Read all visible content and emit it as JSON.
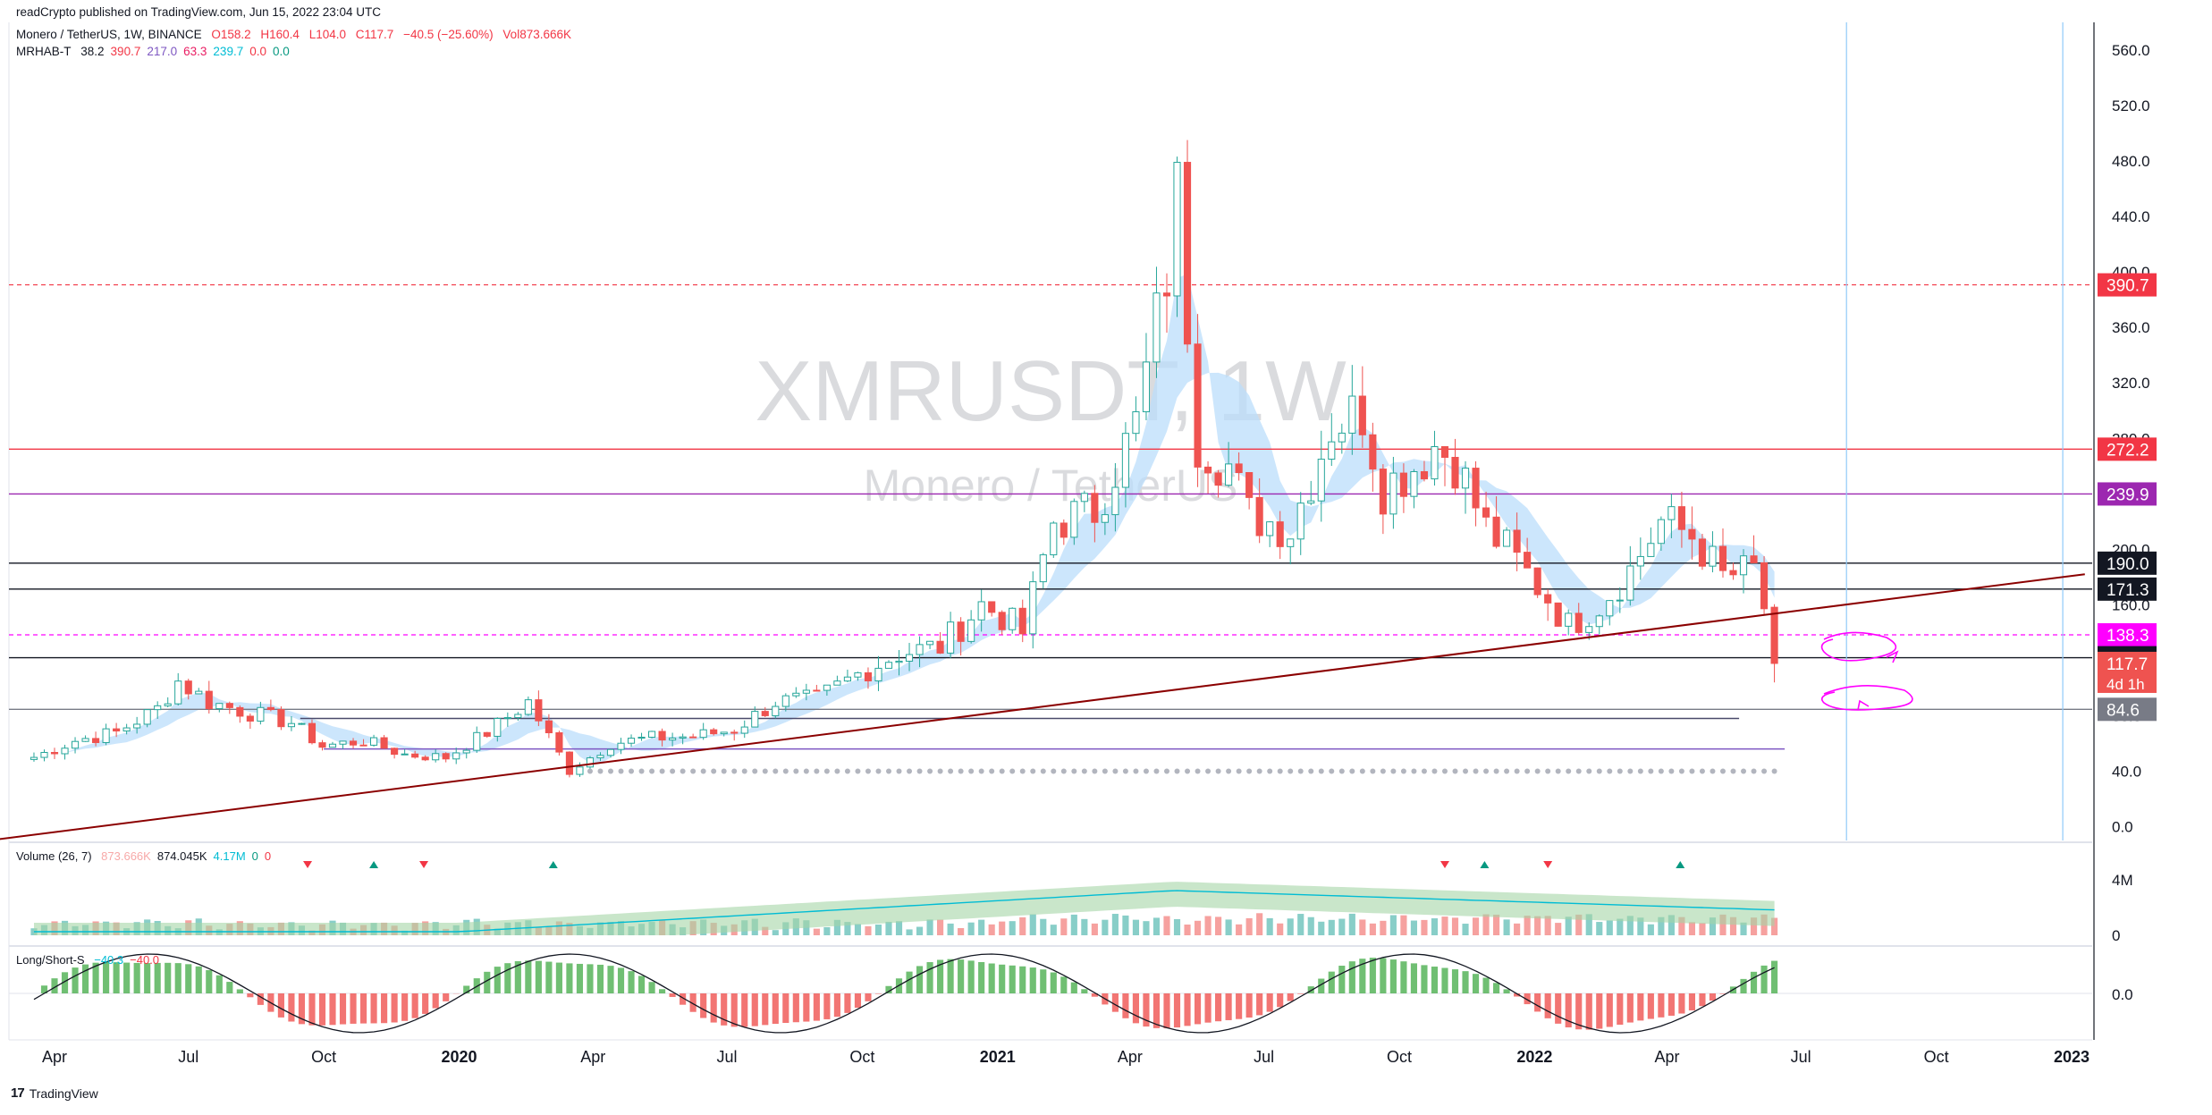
{
  "header": {
    "published": "readCrypto published on TradingView.com, Jun 15, 2022 23:04 UTC",
    "symbol_line": "Monero / TetherUS, 1W, BINANCE",
    "ohlc": {
      "o": "O158.2",
      "h": "H160.4",
      "l": "L104.0",
      "c": "C117.7",
      "chg": "−40.5 (−25.60%)",
      "vol": "Vol873.666K"
    },
    "indicator_name": "MRHAB-T",
    "indicator_values": [
      {
        "text": "38.2",
        "color": "#131722"
      },
      {
        "text": "390.7",
        "color": "#f23645"
      },
      {
        "text": "217.0",
        "color": "#7e57c2"
      },
      {
        "text": "63.3",
        "color": "#e91e63"
      },
      {
        "text": "239.7",
        "color": "#00bcd4"
      },
      {
        "text": "0.0",
        "color": "#f23645"
      },
      {
        "text": "0.0",
        "color": "#089981"
      }
    ]
  },
  "watermark": {
    "symbol": "XMRUSDT, 1W",
    "description": "Monero / TetherUS"
  },
  "colors": {
    "up": "#26a69a",
    "down": "#ef5350",
    "trendline": "#8b0000",
    "red_line": "#f23645",
    "purple": "#9c27b0",
    "magenta": "#ff00ff",
    "cyan": "#00bcd4",
    "grey": "#787b86",
    "ribbon_blue": "#bbdefb",
    "ribbon_orange": "#f5c6a5",
    "ribbon_pink": "#f8c7cc"
  },
  "price_axis": {
    "ticks": [
      "560.0",
      "520.0",
      "480.0",
      "440.0",
      "400.0",
      "360.0",
      "320.0",
      "280.0",
      "240.0",
      "200.0",
      "160.0",
      "120.0",
      "80.0",
      "40.0",
      "0.0"
    ],
    "labels": [
      {
        "text": "390.7",
        "bg": "#f23645",
        "fg": "#ffffff",
        "value": 390.7
      },
      {
        "text": "272.2",
        "bg": "#f23645",
        "fg": "#ffffff",
        "value": 272.2
      },
      {
        "text": "239.9",
        "bg": "#9c27b0",
        "fg": "#ffffff",
        "value": 239.9
      },
      {
        "text": "190.0",
        "bg": "#131722",
        "fg": "#ffffff",
        "value": 190.0
      },
      {
        "text": "171.3",
        "bg": "#131722",
        "fg": "#ffffff",
        "value": 171.3
      },
      {
        "text": "138.3",
        "bg": "#ff00ff",
        "fg": "#ffffff",
        "value": 138.3
      },
      {
        "text": "121.8",
        "bg": "#131722",
        "fg": "#ffffff",
        "value": 121.8
      },
      {
        "text": "117.7",
        "bg": "#ef5350",
        "fg": "#ffffff",
        "value": 117.7,
        "sub": "4d 1h"
      },
      {
        "text": "84.6",
        "bg": "#787b86",
        "fg": "#ffffff",
        "value": 84.6
      }
    ]
  },
  "volume_pane": {
    "title": "Volume (26, 7)",
    "values": [
      {
        "text": "873.666K",
        "color": "#f7a9a8"
      },
      {
        "text": "874.045K",
        "color": "#131722"
      },
      {
        "text": "4.17M",
        "color": "#00bcd4"
      },
      {
        "text": "0",
        "color": "#089981"
      },
      {
        "text": "0",
        "color": "#f23645"
      }
    ],
    "ticks": [
      "4M",
      "0"
    ]
  },
  "ls_pane": {
    "title": "Long/Short-S",
    "values": [
      {
        "text": "−40.3",
        "color": "#00bcd4"
      },
      {
        "text": "−40.0",
        "color": "#f23645"
      }
    ],
    "ticks": [
      "0.0"
    ]
  },
  "time_axis": {
    "labels": [
      {
        "text": "Apr",
        "bold": false
      },
      {
        "text": "Jul",
        "bold": false
      },
      {
        "text": "Oct",
        "bold": false
      },
      {
        "text": "2020",
        "bold": true
      },
      {
        "text": "Apr",
        "bold": false
      },
      {
        "text": "Jul",
        "bold": false
      },
      {
        "text": "Oct",
        "bold": false
      },
      {
        "text": "2021",
        "bold": true
      },
      {
        "text": "Apr",
        "bold": false
      },
      {
        "text": "Jul",
        "bold": false
      },
      {
        "text": "Oct",
        "bold": false
      },
      {
        "text": "2022",
        "bold": true
      },
      {
        "text": "Apr",
        "bold": false
      },
      {
        "text": "Jul",
        "bold": false
      },
      {
        "text": "Oct",
        "bold": false
      },
      {
        "text": "2023",
        "bold": true
      }
    ]
  },
  "chart_data": {
    "type": "candlestick",
    "symbol": "XMRUSDT",
    "interval": "1W",
    "exchange": "BINANCE",
    "yrange": [
      -10,
      580
    ],
    "xrange": [
      "2019-03-01",
      "2023-01-15"
    ],
    "last": {
      "open": 158.2,
      "high": 160.4,
      "low": 104.0,
      "close": 117.7,
      "change": -40.5,
      "change_pct": -25.6,
      "volume": "873.666K"
    },
    "close_anchors": [
      [
        "2019-03-18",
        50
      ],
      [
        "2019-04-15",
        62
      ],
      [
        "2019-05-13",
        68
      ],
      [
        "2019-06-10",
        85
      ],
      [
        "2019-06-24",
        105
      ],
      [
        "2019-07-15",
        90
      ],
      [
        "2019-08-12",
        82
      ],
      [
        "2019-09-09",
        75
      ],
      [
        "2019-09-30",
        58
      ],
      [
        "2019-10-28",
        62
      ],
      [
        "2019-11-25",
        52
      ],
      [
        "2019-12-23",
        50
      ],
      [
        "2020-01-20",
        68
      ],
      [
        "2020-02-17",
        90
      ],
      [
        "2020-03-16",
        40
      ],
      [
        "2020-04-13",
        60
      ],
      [
        "2020-05-11",
        64
      ],
      [
        "2020-06-08",
        65
      ],
      [
        "2020-07-06",
        70
      ],
      [
        "2020-08-03",
        90
      ],
      [
        "2020-08-31",
        92
      ],
      [
        "2020-09-28",
        110
      ],
      [
        "2020-10-26",
        125
      ],
      [
        "2020-11-23",
        130
      ],
      [
        "2020-12-21",
        160
      ],
      [
        "2021-01-04",
        152
      ],
      [
        "2021-01-18",
        140
      ],
      [
        "2021-02-08",
        220
      ],
      [
        "2021-03-08",
        228
      ],
      [
        "2021-04-05",
        290
      ],
      [
        "2021-04-26",
        400
      ],
      [
        "2021-05-03",
        455
      ],
      [
        "2021-05-17",
        280
      ],
      [
        "2021-06-07",
        260
      ],
      [
        "2021-06-21",
        225
      ],
      [
        "2021-07-19",
        215
      ],
      [
        "2021-08-16",
        290
      ],
      [
        "2021-09-06",
        300
      ],
      [
        "2021-09-20",
        245
      ],
      [
        "2021-10-11",
        260
      ],
      [
        "2021-10-25",
        275
      ],
      [
        "2021-11-08",
        265
      ],
      [
        "2021-11-29",
        215
      ],
      [
        "2021-12-13",
        200
      ],
      [
        "2022-01-10",
        165
      ],
      [
        "2022-01-24",
        145
      ],
      [
        "2022-02-14",
        160
      ],
      [
        "2022-03-07",
        185
      ],
      [
        "2022-03-28",
        220
      ],
      [
        "2022-04-18",
        210
      ],
      [
        "2022-05-09",
        180
      ],
      [
        "2022-05-30",
        185
      ],
      [
        "2022-06-06",
        158.2
      ],
      [
        "2022-06-13",
        117.7
      ]
    ],
    "horizontal_levels": [
      {
        "value": 390.7,
        "color": "#f23645",
        "style": "dashed"
      },
      {
        "value": 272.2,
        "color": "#f23645",
        "style": "solid"
      },
      {
        "value": 239.9,
        "color": "#9c27b0",
        "style": "solid"
      },
      {
        "value": 190.0,
        "color": "#131722",
        "style": "solid"
      },
      {
        "value": 171.3,
        "color": "#131722",
        "style": "solid"
      },
      {
        "value": 138.3,
        "color": "#ff00ff",
        "style": "dashed"
      },
      {
        "value": 121.8,
        "color": "#131722",
        "style": "solid"
      },
      {
        "value": 84.6,
        "color": "#787b86",
        "style": "solid"
      }
    ],
    "trendline": {
      "start": [
        "2019-02-15",
        -10
      ],
      "end": [
        "2023-01-10",
        182
      ],
      "color": "#8b0000"
    },
    "vertical_lines": [
      "2022-08-01",
      "2022-12-26"
    ],
    "grid": true,
    "watermark": "XMRUSDT, 1W"
  }
}
